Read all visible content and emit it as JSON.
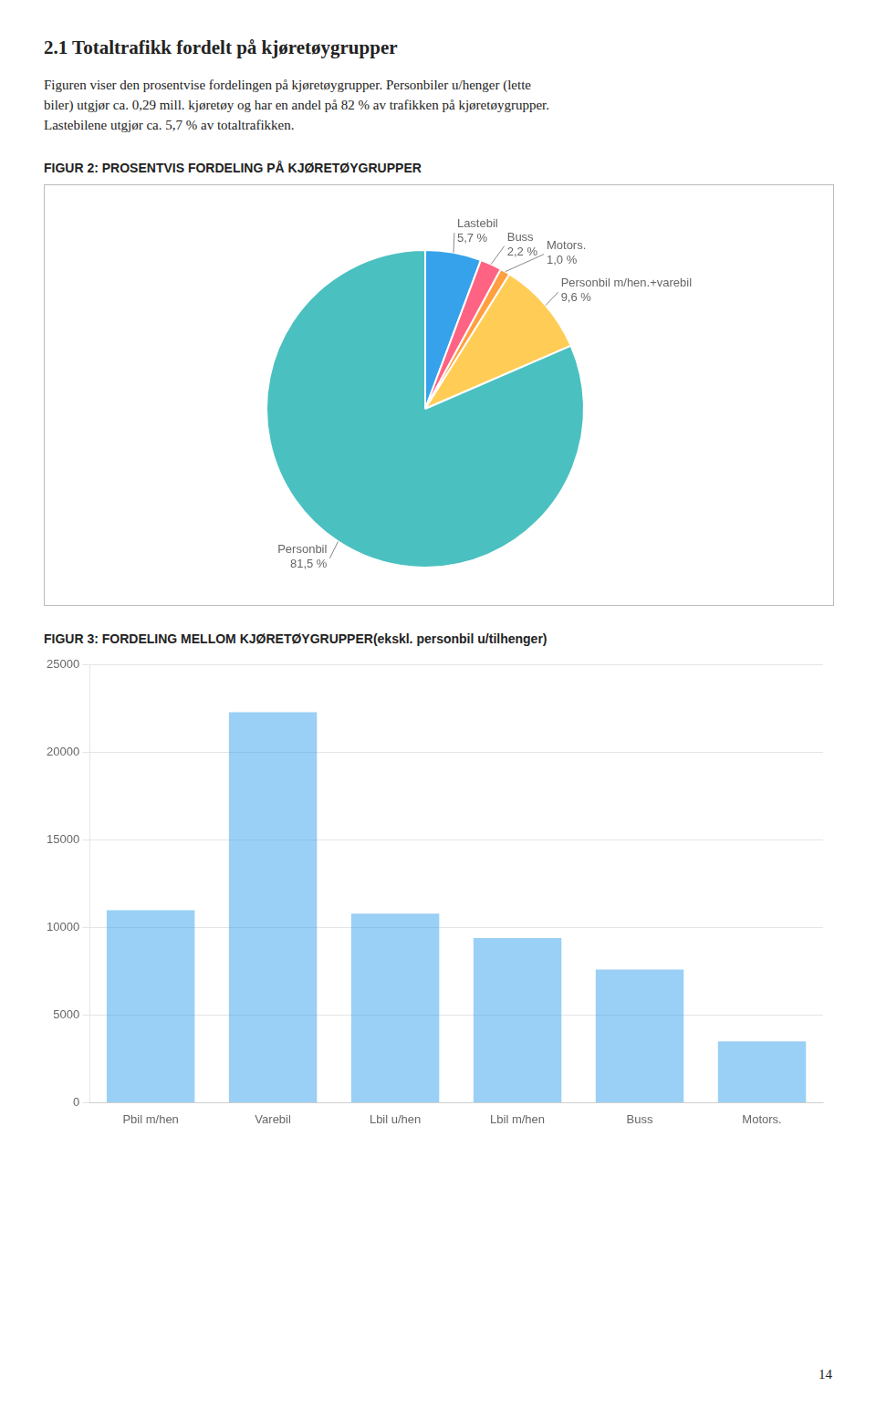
{
  "title": "2.1 Totaltrafikk fordelt på kjøretøygrupper",
  "subtitle": [
    "Figuren viser den prosentvise fordelingen på kjøretøygrupper. Personbiler u/henger (lette",
    "biler) utgjør ca. 0,29 mill. kjøretøy  og har en  andel på 82 % av trafikken på kjøretøygrupper.",
    "Lastebilene utgjør ca. 5,7 % av totaltrafikken."
  ],
  "annotations": [
    "14"
  ],
  "chart_data": [
    {
      "type": "pie",
      "title": "FIGUR 2:  PROSENTVIS FORDELING PÅ KJØRETØYGRUPPER",
      "categories": [
        "Lastebil",
        "Buss",
        "Motors.",
        "Personbil m/hen.+varebil",
        "Personbil"
      ],
      "values": [
        5.7,
        2.2,
        1.0,
        9.6,
        81.5
      ],
      "value_labels": [
        "5,7 %",
        "2,2 %",
        "1,0 %",
        "9,6 %",
        "81,5 %"
      ],
      "data_labels": true
    },
    {
      "type": "bar",
      "title": "FIGUR 3: FORDELING MELLOM KJØRETØYGRUPPER(ekskl. personbil u/tilhenger)",
      "categories": [
        "Pbil m/hen",
        "Varebil",
        "Lbil u/hen",
        "Lbil m/hen",
        "Buss",
        "Motors."
      ],
      "values": [
        11000,
        22300,
        10800,
        9400,
        7600,
        3500
      ],
      "ylim": [
        0,
        25000
      ],
      "yticks": [
        0,
        5000,
        10000,
        15000,
        20000,
        25000
      ],
      "grid": true
    }
  ]
}
